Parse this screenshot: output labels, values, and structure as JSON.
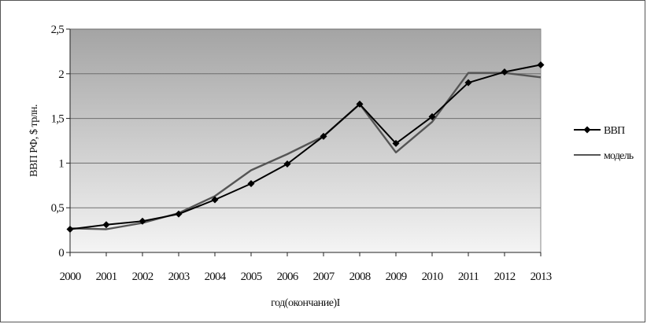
{
  "chart_data": {
    "type": "line",
    "title": "",
    "xlabel": "год(окончание)I",
    "ylabel": "ВВП РФ, $ трлн.",
    "x": [
      "2000",
      "2001",
      "2002",
      "2003",
      "2004",
      "2005",
      "2006",
      "2007",
      "2008",
      "2009",
      "2010",
      "2011",
      "2012",
      "2013"
    ],
    "ylim": [
      0,
      2.5
    ],
    "yticks": [
      "0",
      "0,5",
      "1",
      "1,5",
      "2",
      "2,5"
    ],
    "grid": true,
    "legend_position": "right",
    "series": [
      {
        "name": "ВВП",
        "color": "#000000",
        "marker": "diamond",
        "values": [
          0.26,
          0.31,
          0.35,
          0.43,
          0.59,
          0.77,
          0.99,
          1.3,
          1.66,
          1.22,
          1.52,
          1.9,
          2.02,
          2.1
        ]
      },
      {
        "name": "модель",
        "color": "#555555",
        "marker": "none",
        "values": [
          0.27,
          0.26,
          0.33,
          0.44,
          0.63,
          0.92,
          1.1,
          1.3,
          1.66,
          1.12,
          1.46,
          2.01,
          2.01,
          1.96
        ]
      }
    ]
  }
}
